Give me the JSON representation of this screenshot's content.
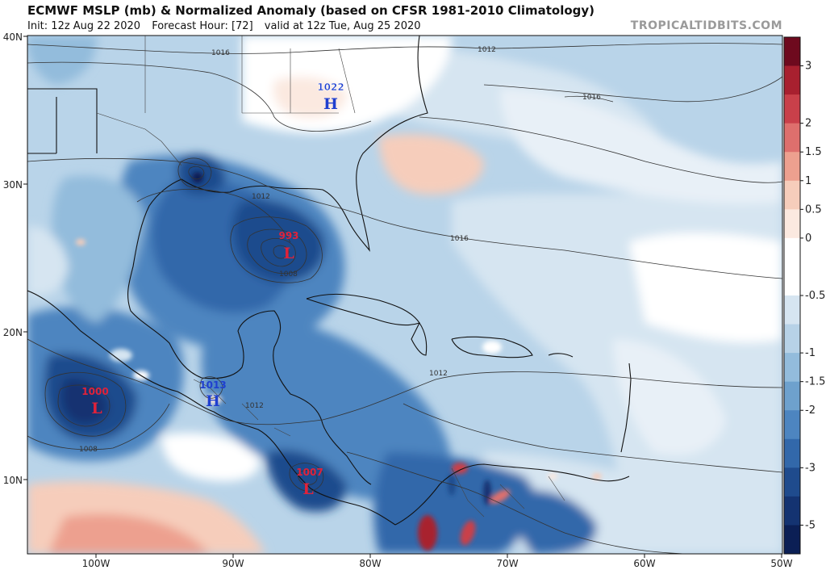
{
  "header": {
    "title": "ECMWF MSLP (mb) & Normalized Anomaly (based on CFSR 1981-2010 Climatology)",
    "init": "Init: 12z Aug 22 2020",
    "forecast_hour": "Forecast Hour: [72]",
    "valid": "valid at 12z Tue, Aug 25 2020",
    "watermark": "TROPICALTIDBITS.COM"
  },
  "axes": {
    "lon_ticks": [
      "100W",
      "90W",
      "80W",
      "70W",
      "60W",
      "50W"
    ],
    "lat_ticks": [
      "40N",
      "30N",
      "20N",
      "10N"
    ]
  },
  "colorbar": {
    "labels": [
      "3",
      "2",
      "1.5",
      "1",
      "0.5",
      "0",
      "-0.5",
      "-1",
      "-1.5",
      "-2",
      "-3",
      "-5"
    ],
    "colors": [
      "#6e0a1e",
      "#a8202f",
      "#c9404a",
      "#de6f6d",
      "#eda08f",
      "#f6cdbb",
      "#fbe9e0",
      "#ffffff",
      "#ffffff",
      "#d6e5f1",
      "#b7d2e7",
      "#93bcdc",
      "#6ea1cd",
      "#4d85c0",
      "#3268aa",
      "#1f4b8d",
      "#143371",
      "#0b1f55"
    ]
  },
  "pressure_centers": [
    {
      "type": "H",
      "value": "1022",
      "name": "high-carolinas"
    },
    {
      "type": "L",
      "value": "993",
      "name": "low-gulf"
    },
    {
      "type": "L",
      "value": "1000",
      "name": "low-east-pacific"
    },
    {
      "type": "H",
      "value": "1013",
      "name": "high-guatemala"
    },
    {
      "type": "L",
      "value": "1007",
      "name": "low-costa-rica"
    }
  ],
  "contour_labels": [
    "1016",
    "1012",
    "1016",
    "1012",
    "1016",
    "1008",
    "1012",
    "1012",
    "1008"
  ],
  "colors": {
    "high": "#1f3fcf",
    "low": "#e0223a"
  }
}
